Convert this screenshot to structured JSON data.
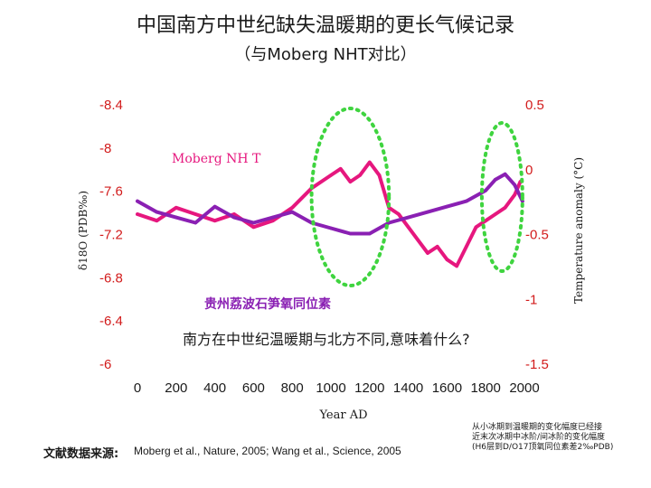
{
  "slide": {
    "title_line1": "中国南方中世纪缺失温暖期的更长气候记录",
    "title_line2": "（与Moberg NHT对比）",
    "question": "南方在中世纪温暖期与北方不同,意味着什么?",
    "source_label": "文献数据来源:",
    "source_text": "Moberg et al., Nature, 2005; Wang et al., Science, 2005",
    "note_line1": "从小冰期到温暖期的变化幅度已经接",
    "note_line2": "近末次冰期中冰阶/间冰阶的变化幅度",
    "note_line3": "(H6层到D/O17顶氧同位素差2‰PDB)"
  },
  "chart_data": {
    "type": "line",
    "xlabel": "Year AD",
    "ylabel_left": "δ18O (PDB‰)",
    "ylabel_right": "Temperature anomaly (°C)",
    "xlim": [
      0,
      2000
    ],
    "x_ticks": [
      "0",
      "200",
      "400",
      "600",
      "800",
      "1000",
      "1200",
      "1400",
      "1600",
      "1800",
      "2000"
    ],
    "ylim_left": [
      -8.4,
      -6.0
    ],
    "ylim_left_inverted": true,
    "y_ticks_left": [
      "-8.4",
      "-8",
      "-7.6",
      "-7.2",
      "-6.8",
      "-6.4",
      "-6"
    ],
    "ylim_right": [
      -1.5,
      0.5
    ],
    "y_ticks_right": [
      "0.5",
      "0",
      "-0.5",
      "-1",
      "-1.5"
    ],
    "annotations": [
      "Moberg NH T",
      "贵州荔波石笋氧同位素"
    ],
    "highlight_range_x": [
      900,
      1300
    ],
    "highlight_range_x2": [
      1780,
      1990
    ],
    "series": [
      {
        "name": "",
        "axis": "right",
        "color": "#e6177e",
        "x": [
          0,
          100,
          200,
          300,
          400,
          500,
          600,
          700,
          800,
          900,
          1000,
          1050,
          1100,
          1150,
          1200,
          1250,
          1300,
          1350,
          1400,
          1450,
          1500,
          1550,
          1600,
          1650,
          1700,
          1750,
          1800,
          1850,
          1900,
          1950,
          1979
        ],
        "y": [
          -0.35,
          -0.4,
          -0.3,
          -0.35,
          -0.4,
          -0.35,
          -0.45,
          -0.4,
          -0.3,
          -0.15,
          -0.05,
          0.0,
          -0.1,
          -0.05,
          0.05,
          -0.05,
          -0.3,
          -0.35,
          -0.45,
          -0.55,
          -0.65,
          -0.6,
          -0.7,
          -0.75,
          -0.6,
          -0.45,
          -0.4,
          -0.35,
          -0.3,
          -0.2,
          -0.1
        ]
      },
      {
        "name": "",
        "axis": "left",
        "color": "#8a20b3",
        "x": [
          0,
          100,
          200,
          300,
          400,
          500,
          600,
          700,
          800,
          900,
          1000,
          1100,
          1200,
          1300,
          1400,
          1500,
          1600,
          1700,
          1800,
          1850,
          1900,
          1950,
          1990
        ],
        "y": [
          -7.5,
          -7.4,
          -7.35,
          -7.3,
          -7.45,
          -7.35,
          -7.3,
          -7.35,
          -7.4,
          -7.3,
          -7.25,
          -7.2,
          -7.2,
          -7.3,
          -7.35,
          -7.4,
          -7.45,
          -7.5,
          -7.6,
          -7.7,
          -7.75,
          -7.65,
          -7.5
        ]
      }
    ]
  }
}
